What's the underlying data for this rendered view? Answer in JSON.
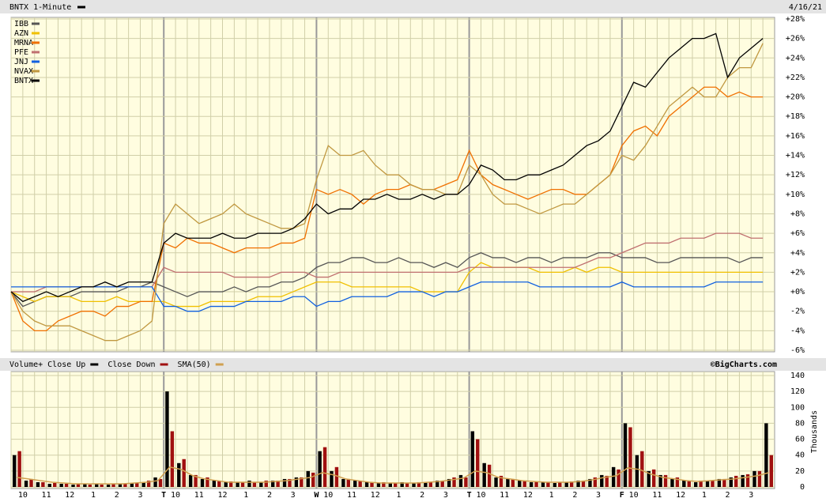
{
  "chart_data": [
    {
      "type": "line",
      "title": "BNTX 1-Minute",
      "title_color": "#000000",
      "date": "4/16/21",
      "ylim": [
        -6,
        28
      ],
      "yticks": [
        {
          "value": -6,
          "label": "-6%"
        },
        {
          "value": -4,
          "label": "-4%"
        },
        {
          "value": -2,
          "label": "-2%"
        },
        {
          "value": 0,
          "label": "+0%"
        },
        {
          "value": 2,
          "label": "+2%"
        },
        {
          "value": 4,
          "label": "+4%"
        },
        {
          "value": 6,
          "label": "+6%"
        },
        {
          "value": 8,
          "label": "+8%"
        },
        {
          "value": 10,
          "label": "+10%"
        },
        {
          "value": 12,
          "label": "+12%"
        },
        {
          "value": 14,
          "label": "+14%"
        },
        {
          "value": 16,
          "label": "+16%"
        },
        {
          "value": 18,
          "label": "+18%"
        },
        {
          "value": 20,
          "label": "+20%"
        },
        {
          "value": 22,
          "label": "+22%"
        },
        {
          "value": 24,
          "label": "+24%"
        },
        {
          "value": 26,
          "label": "+26%"
        },
        {
          "value": 28,
          "label": "+28%"
        }
      ],
      "grid": true,
      "series": [
        {
          "name": "IBB",
          "color": "#555555",
          "values": [
            0,
            -1.5,
            -1,
            -0.5,
            -0.5,
            -0.5,
            0,
            0,
            0,
            0,
            0.5,
            0.5,
            1,
            0.5,
            0,
            -0.5,
            0,
            0,
            0,
            0.5,
            0,
            0.5,
            0.5,
            1,
            1,
            1.5,
            2.5,
            3,
            3,
            3.5,
            3.5,
            3,
            3,
            3.5,
            3,
            3,
            2.5,
            3,
            2.5,
            3.5,
            4,
            3.5,
            3.5,
            3,
            3.5,
            3.5,
            3,
            3.5,
            3.5,
            3.5,
            4,
            4,
            3.5,
            3.5,
            3.5,
            3,
            3,
            3.5,
            3.5,
            3.5,
            3.5,
            3.5,
            3,
            3.5,
            3.5
          ]
        },
        {
          "name": "AZN",
          "color": "#f0c000",
          "values": [
            0,
            -0.5,
            -1,
            -0.5,
            -0.5,
            -0.5,
            -1,
            -1,
            -1,
            -0.5,
            -1,
            -1,
            -1,
            -1,
            -1.5,
            -1.5,
            -1.5,
            -1,
            -1,
            -1,
            -1,
            -0.5,
            -0.5,
            -0.5,
            0,
            0.5,
            1,
            1,
            1,
            0.5,
            0.5,
            0.5,
            0.5,
            0.5,
            0.5,
            0,
            0,
            0,
            0,
            2,
            3,
            2.5,
            2.5,
            2.5,
            2.5,
            2,
            2,
            2,
            2.5,
            2,
            2.5,
            2.5,
            2,
            2,
            2,
            2,
            2,
            2,
            2,
            2,
            2,
            2,
            2,
            2,
            2
          ]
        },
        {
          "name": "MRNA",
          "color": "#f07000",
          "values": [
            0,
            -3,
            -4,
            -4,
            -3,
            -2.5,
            -2,
            -2,
            -2.5,
            -1.5,
            -1.5,
            -1,
            -1,
            5,
            4.5,
            5.5,
            5,
            5,
            4.5,
            4,
            4.5,
            4.5,
            4.5,
            5,
            5,
            5.5,
            10.5,
            10,
            10.5,
            10,
            9,
            10,
            10.5,
            10.5,
            11,
            10.5,
            10.5,
            11,
            11.5,
            14.5,
            12,
            11,
            10.5,
            10,
            9.5,
            10,
            10.5,
            10.5,
            10,
            10,
            11,
            12,
            15,
            16.5,
            17,
            16,
            18,
            19,
            20,
            21,
            21,
            20,
            20.5,
            20,
            20
          ]
        },
        {
          "name": "PFE",
          "color": "#c07070",
          "values": [
            0,
            0,
            0,
            0.5,
            0.5,
            0.5,
            0.5,
            0.5,
            0.5,
            0.5,
            0.5,
            0.5,
            0.5,
            2.5,
            2,
            2,
            2,
            2,
            2,
            1.5,
            1.5,
            1.5,
            1.5,
            2,
            2,
            2,
            1.5,
            1.5,
            2,
            2,
            2,
            2,
            2,
            2,
            2,
            2,
            2,
            2,
            2,
            2.5,
            2.5,
            2.5,
            2.5,
            2.5,
            2.5,
            2.5,
            2.5,
            2.5,
            2.5,
            3,
            3.5,
            3.5,
            4,
            4.5,
            5,
            5,
            5,
            5.5,
            5.5,
            5.5,
            6,
            6,
            6,
            5.5,
            5.5
          ]
        },
        {
          "name": "JNJ",
          "color": "#1060e0",
          "values": [
            0.5,
            0.5,
            0.5,
            0.5,
            0.5,
            0.5,
            0.5,
            0.5,
            0.5,
            0.5,
            0.5,
            0.5,
            0.5,
            -1.5,
            -1.5,
            -2,
            -2,
            -1.5,
            -1.5,
            -1.5,
            -1,
            -1,
            -1,
            -1,
            -0.5,
            -0.5,
            -1.5,
            -1,
            -1,
            -0.5,
            -0.5,
            -0.5,
            -0.5,
            0,
            0,
            0,
            -0.5,
            0,
            0,
            0.5,
            1,
            1,
            1,
            1,
            1,
            0.5,
            0.5,
            0.5,
            0.5,
            0.5,
            0.5,
            0.5,
            1,
            0.5,
            0.5,
            0.5,
            0.5,
            0.5,
            0.5,
            0.5,
            1,
            1,
            1,
            1,
            1
          ]
        },
        {
          "name": "NVAX",
          "color": "#c09840",
          "values": [
            0,
            -2,
            -3,
            -3.5,
            -3.5,
            -3.5,
            -4,
            -4.5,
            -5,
            -5,
            -4.5,
            -4,
            -3,
            7,
            9,
            8,
            7,
            7.5,
            8,
            9,
            8,
            7.5,
            7,
            6.5,
            6.5,
            7,
            11.5,
            15,
            14,
            14,
            14.5,
            13,
            12,
            12,
            11,
            10.5,
            10.5,
            10,
            10,
            13,
            12,
            10,
            9,
            9,
            8.5,
            8,
            8.5,
            9,
            9,
            10,
            11,
            12,
            14,
            13.5,
            15,
            17,
            19,
            20,
            21,
            20,
            20,
            22,
            23,
            23,
            25.5
          ]
        },
        {
          "name": "BNTX",
          "color": "#000000",
          "values": [
            0,
            -1,
            -0.5,
            0,
            -0.5,
            0,
            0.5,
            0.5,
            1,
            0.5,
            1,
            1,
            1,
            5,
            6,
            5.5,
            5.5,
            5.5,
            6,
            5.5,
            5.5,
            6,
            6,
            6,
            6.5,
            7.5,
            9,
            8,
            8.5,
            8.5,
            9.5,
            9.5,
            10,
            9.5,
            9.5,
            10,
            9.5,
            10,
            10,
            11,
            13,
            12.5,
            11.5,
            11.5,
            12,
            12,
            12.5,
            13,
            14,
            15,
            15.5,
            16.5,
            19,
            21.5,
            21,
            22.5,
            24,
            25,
            26,
            26,
            26.5,
            22,
            24,
            25,
            26
          ]
        }
      ]
    },
    {
      "type": "bar",
      "source": "©BigCharts.com",
      "y_label": "Thousands",
      "categories": [
        null,
        "10",
        null,
        "11",
        null,
        "12",
        null,
        "1",
        null,
        "2",
        null,
        "3",
        null,
        "T",
        "10",
        null,
        "11",
        null,
        "12",
        null,
        "1",
        null,
        "2",
        null,
        "3",
        null,
        "W",
        "10",
        null,
        "11",
        null,
        "12",
        null,
        "1",
        null,
        "2",
        null,
        "3",
        null,
        "T",
        "10",
        null,
        "11",
        null,
        "12",
        null,
        "1",
        null,
        "2",
        null,
        "3",
        null,
        "F",
        "10",
        null,
        "11",
        null,
        "12",
        null,
        "1",
        null,
        "2",
        null,
        "3",
        null
      ],
      "ylim": [
        0,
        140
      ],
      "yticks": [
        0,
        20,
        40,
        60,
        80,
        100,
        120,
        140
      ],
      "grid": true,
      "series": [
        {
          "name": "Volume+ Close Up",
          "color": "#000000",
          "values": [
            40,
            8,
            6,
            4,
            4,
            3,
            4,
            4,
            3,
            4,
            5,
            6,
            12,
            120,
            30,
            15,
            10,
            8,
            6,
            6,
            8,
            6,
            8,
            10,
            12,
            20,
            45,
            20,
            10,
            8,
            6,
            5,
            5,
            6,
            5,
            6,
            8,
            10,
            15,
            70,
            30,
            12,
            10,
            8,
            6,
            6,
            5,
            6,
            8,
            10,
            15,
            25,
            80,
            40,
            20,
            15,
            10,
            8,
            6,
            8,
            10,
            12,
            15,
            20,
            80
          ]
        },
        {
          "name": "Close Down",
          "color": "#a01010",
          "values": [
            45,
            10,
            6,
            5,
            4,
            4,
            3,
            3,
            4,
            4,
            5,
            8,
            10,
            70,
            35,
            15,
            12,
            8,
            7,
            6,
            6,
            8,
            8,
            10,
            12,
            18,
            50,
            25,
            10,
            8,
            6,
            6,
            5,
            5,
            6,
            6,
            8,
            12,
            12,
            60,
            28,
            14,
            10,
            8,
            7,
            6,
            6,
            7,
            8,
            12,
            14,
            22,
            75,
            45,
            22,
            15,
            12,
            8,
            8,
            8,
            10,
            14,
            16,
            20,
            40
          ]
        },
        {
          "name": "SMA(50)",
          "color": "#d0a050",
          "type": "line",
          "values": [
            12,
            10,
            8,
            6,
            5,
            4,
            4,
            4,
            4,
            4,
            5,
            6,
            8,
            25,
            22,
            14,
            10,
            8,
            6,
            6,
            6,
            6,
            7,
            8,
            10,
            12,
            18,
            15,
            10,
            8,
            6,
            5,
            5,
            5,
            5,
            6,
            7,
            9,
            11,
            20,
            18,
            12,
            10,
            8,
            7,
            6,
            6,
            6,
            7,
            9,
            12,
            14,
            24,
            22,
            16,
            12,
            10,
            8,
            7,
            8,
            9,
            10,
            12,
            14,
            18
          ]
        }
      ]
    }
  ]
}
